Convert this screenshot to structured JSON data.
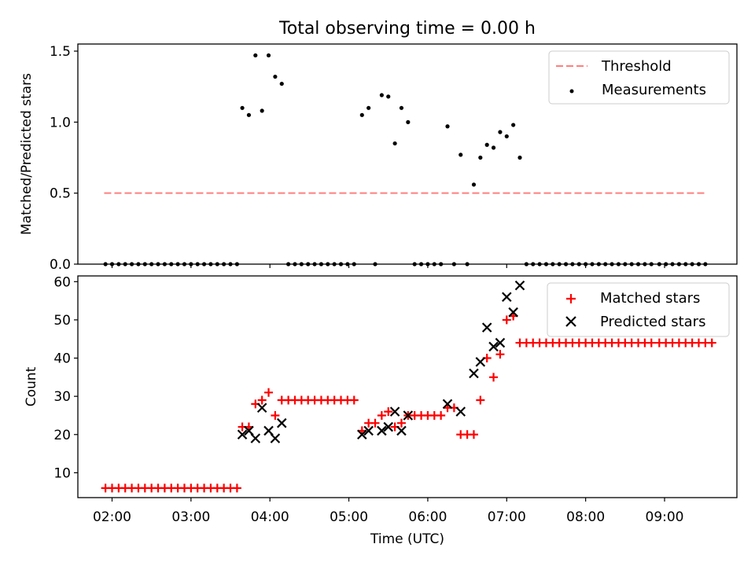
{
  "figure_title": "Total observing time = 0.00 h",
  "x_axis": {
    "label": "Time (UTC)",
    "tick_labels": [
      "02:00",
      "03:00",
      "04:00",
      "05:00",
      "06:00",
      "07:00",
      "08:00",
      "09:00"
    ],
    "range": [
      "01:34",
      "09:55"
    ]
  },
  "colors": {
    "threshold": "#ff7f7f",
    "measurements": "#000000",
    "matched": "#ff0000",
    "predicted": "#000000"
  },
  "chart_data": [
    {
      "type": "scatter",
      "ylabel": "Matched/Predicted stars",
      "ylim": [
        0,
        1.55
      ],
      "yticks": [
        "0.0",
        "0.5",
        "1.0",
        "1.5"
      ],
      "legend_position": "top-right",
      "threshold": {
        "name": "Threshold",
        "value": 0.5,
        "x_start": "01:54",
        "x_end": "09:31"
      },
      "series": [
        {
          "name": "Measurements",
          "points": [
            [
              "01:55",
              0
            ],
            [
              "02:00",
              0
            ],
            [
              "02:05",
              0
            ],
            [
              "02:10",
              0
            ],
            [
              "02:15",
              0
            ],
            [
              "02:20",
              0
            ],
            [
              "02:25",
              0
            ],
            [
              "02:30",
              0
            ],
            [
              "02:35",
              0
            ],
            [
              "02:40",
              0
            ],
            [
              "02:45",
              0
            ],
            [
              "02:50",
              0
            ],
            [
              "02:55",
              0
            ],
            [
              "03:00",
              0
            ],
            [
              "03:05",
              0
            ],
            [
              "03:10",
              0
            ],
            [
              "03:15",
              0
            ],
            [
              "03:20",
              0
            ],
            [
              "03:25",
              0
            ],
            [
              "03:30",
              0
            ],
            [
              "03:35",
              0
            ],
            [
              "03:39",
              1.1
            ],
            [
              "03:44",
              1.05
            ],
            [
              "03:49",
              1.47
            ],
            [
              "03:54",
              1.08
            ],
            [
              "03:59",
              1.47
            ],
            [
              "04:04",
              1.32
            ],
            [
              "04:09",
              1.27
            ],
            [
              "04:14",
              0
            ],
            [
              "04:19",
              0
            ],
            [
              "04:24",
              0
            ],
            [
              "04:29",
              0
            ],
            [
              "04:34",
              0
            ],
            [
              "04:39",
              0
            ],
            [
              "04:44",
              0
            ],
            [
              "04:49",
              0
            ],
            [
              "04:54",
              0
            ],
            [
              "04:59",
              0
            ],
            [
              "05:04",
              0
            ],
            [
              "05:10",
              1.05
            ],
            [
              "05:15",
              1.1
            ],
            [
              "05:20",
              0
            ],
            [
              "05:25",
              1.19
            ],
            [
              "05:30",
              1.18
            ],
            [
              "05:35",
              0.85
            ],
            [
              "05:40",
              1.1
            ],
            [
              "05:45",
              1.0
            ],
            [
              "05:50",
              0
            ],
            [
              "05:55",
              0
            ],
            [
              "06:00",
              0
            ],
            [
              "06:05",
              0
            ],
            [
              "06:10",
              0
            ],
            [
              "06:15",
              0.97
            ],
            [
              "06:20",
              0
            ],
            [
              "06:25",
              0.77
            ],
            [
              "06:30",
              0
            ],
            [
              "06:35",
              0.56
            ],
            [
              "06:40",
              0.75
            ],
            [
              "06:45",
              0.84
            ],
            [
              "06:50",
              0.82
            ],
            [
              "06:55",
              0.93
            ],
            [
              "07:00",
              0.9
            ],
            [
              "07:05",
              0.98
            ],
            [
              "07:10",
              0.75
            ],
            [
              "07:15",
              0
            ],
            [
              "07:20",
              0
            ],
            [
              "07:25",
              0
            ],
            [
              "07:30",
              0
            ],
            [
              "07:35",
              0
            ],
            [
              "07:40",
              0
            ],
            [
              "07:45",
              0
            ],
            [
              "07:50",
              0
            ],
            [
              "07:55",
              0
            ],
            [
              "08:00",
              0
            ],
            [
              "08:05",
              0
            ],
            [
              "08:10",
              0
            ],
            [
              "08:15",
              0
            ],
            [
              "08:20",
              0
            ],
            [
              "08:25",
              0
            ],
            [
              "08:30",
              0
            ],
            [
              "08:35",
              0
            ],
            [
              "08:40",
              0
            ],
            [
              "08:45",
              0
            ],
            [
              "08:50",
              0
            ],
            [
              "08:56",
              0
            ],
            [
              "09:01",
              0
            ],
            [
              "09:06",
              0
            ],
            [
              "09:11",
              0
            ],
            [
              "09:16",
              0
            ],
            [
              "09:21",
              0
            ],
            [
              "09:26",
              0
            ],
            [
              "09:31",
              0
            ]
          ]
        }
      ]
    },
    {
      "type": "scatter",
      "ylabel": "Count",
      "ylim": [
        3.5,
        61.5
      ],
      "yticks": [
        "10",
        "20",
        "30",
        "40",
        "50",
        "60"
      ],
      "legend_position": "top-right",
      "series": [
        {
          "name": "Matched stars",
          "points": [
            [
              "01:55",
              6
            ],
            [
              "02:00",
              6
            ],
            [
              "02:05",
              6
            ],
            [
              "02:10",
              6
            ],
            [
              "02:15",
              6
            ],
            [
              "02:20",
              6
            ],
            [
              "02:25",
              6
            ],
            [
              "02:30",
              6
            ],
            [
              "02:35",
              6
            ],
            [
              "02:40",
              6
            ],
            [
              "02:45",
              6
            ],
            [
              "02:50",
              6
            ],
            [
              "02:55",
              6
            ],
            [
              "03:00",
              6
            ],
            [
              "03:05",
              6
            ],
            [
              "03:10",
              6
            ],
            [
              "03:15",
              6
            ],
            [
              "03:20",
              6
            ],
            [
              "03:25",
              6
            ],
            [
              "03:30",
              6
            ],
            [
              "03:35",
              6
            ],
            [
              "03:39",
              22
            ],
            [
              "03:44",
              22
            ],
            [
              "03:49",
              28
            ],
            [
              "03:54",
              29
            ],
            [
              "03:59",
              31
            ],
            [
              "04:04",
              25
            ],
            [
              "04:09",
              29
            ],
            [
              "04:14",
              29
            ],
            [
              "04:19",
              29
            ],
            [
              "04:24",
              29
            ],
            [
              "04:29",
              29
            ],
            [
              "04:34",
              29
            ],
            [
              "04:39",
              29
            ],
            [
              "04:44",
              29
            ],
            [
              "04:49",
              29
            ],
            [
              "04:54",
              29
            ],
            [
              "04:59",
              29
            ],
            [
              "05:04",
              29
            ],
            [
              "05:10",
              21
            ],
            [
              "05:15",
              23
            ],
            [
              "05:20",
              23
            ],
            [
              "05:25",
              25
            ],
            [
              "05:30",
              26
            ],
            [
              "05:35",
              22
            ],
            [
              "05:40",
              23
            ],
            [
              "05:45",
              25
            ],
            [
              "05:50",
              25
            ],
            [
              "05:55",
              25
            ],
            [
              "06:00",
              25
            ],
            [
              "06:05",
              25
            ],
            [
              "06:10",
              25
            ],
            [
              "06:15",
              27
            ],
            [
              "06:20",
              27
            ],
            [
              "06:25",
              20
            ],
            [
              "06:30",
              20
            ],
            [
              "06:35",
              20
            ],
            [
              "06:40",
              29
            ],
            [
              "06:45",
              40
            ],
            [
              "06:50",
              35
            ],
            [
              "06:55",
              41
            ],
            [
              "07:00",
              50
            ],
            [
              "07:05",
              51
            ],
            [
              "07:10",
              44
            ],
            [
              "07:15",
              44
            ],
            [
              "07:20",
              44
            ],
            [
              "07:25",
              44
            ],
            [
              "07:30",
              44
            ],
            [
              "07:35",
              44
            ],
            [
              "07:40",
              44
            ],
            [
              "07:45",
              44
            ],
            [
              "07:50",
              44
            ],
            [
              "07:55",
              44
            ],
            [
              "08:00",
              44
            ],
            [
              "08:05",
              44
            ],
            [
              "08:10",
              44
            ],
            [
              "08:15",
              44
            ],
            [
              "08:20",
              44
            ],
            [
              "08:25",
              44
            ],
            [
              "08:30",
              44
            ],
            [
              "08:35",
              44
            ],
            [
              "08:40",
              44
            ],
            [
              "08:45",
              44
            ],
            [
              "08:50",
              44
            ],
            [
              "08:56",
              44
            ],
            [
              "09:01",
              44
            ],
            [
              "09:06",
              44
            ],
            [
              "09:11",
              44
            ],
            [
              "09:16",
              44
            ],
            [
              "09:21",
              44
            ],
            [
              "09:26",
              44
            ],
            [
              "09:31",
              44
            ],
            [
              "09:36",
              44
            ]
          ]
        },
        {
          "name": "Predicted stars",
          "points": [
            [
              "03:39",
              20
            ],
            [
              "03:44",
              21
            ],
            [
              "03:49",
              19
            ],
            [
              "03:54",
              27
            ],
            [
              "03:59",
              21
            ],
            [
              "04:04",
              19
            ],
            [
              "04:09",
              23
            ],
            [
              "05:10",
              20
            ],
            [
              "05:15",
              21
            ],
            [
              "05:25",
              21
            ],
            [
              "05:30",
              22
            ],
            [
              "05:35",
              26
            ],
            [
              "05:40",
              21
            ],
            [
              "05:45",
              25
            ],
            [
              "06:15",
              28
            ],
            [
              "06:25",
              26
            ],
            [
              "06:35",
              36
            ],
            [
              "06:40",
              39
            ],
            [
              "06:45",
              48
            ],
            [
              "06:50",
              43
            ],
            [
              "06:55",
              44
            ],
            [
              "07:00",
              56
            ],
            [
              "07:05",
              52
            ],
            [
              "07:10",
              59
            ]
          ]
        }
      ]
    }
  ]
}
